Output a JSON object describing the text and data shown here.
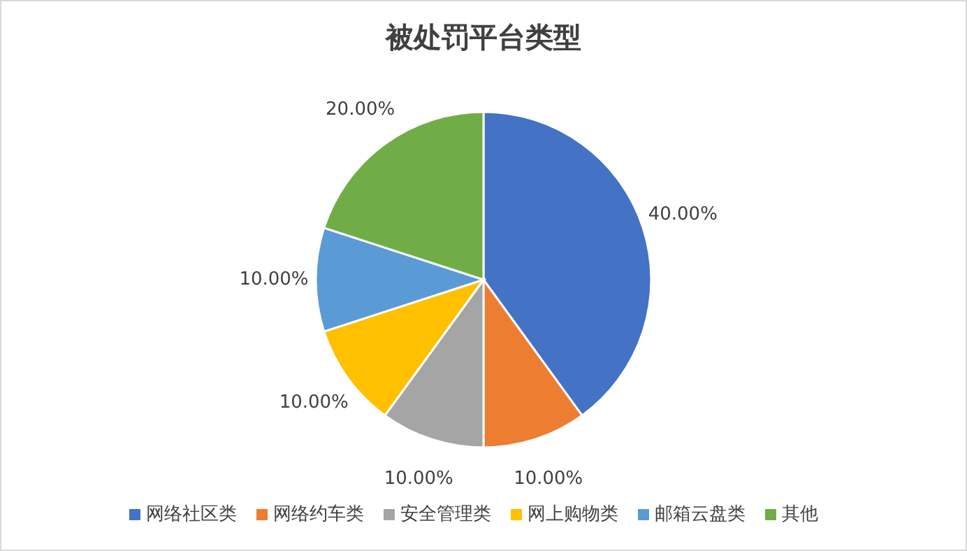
{
  "chart_data": {
    "type": "pie",
    "title": "被处罚平台类型",
    "categories": [
      "网络社区类",
      "网络约车类",
      "安全管理类",
      "网上购物类",
      "邮箱云盘类",
      "其他"
    ],
    "values": [
      40,
      10,
      10,
      10,
      10,
      20
    ],
    "value_labels": [
      "40.00%",
      "10.00%",
      "10.00%",
      "10.00%",
      "10.00%",
      "20.00%"
    ],
    "colors": [
      "#4472c4",
      "#ed7d31",
      "#a5a5a5",
      "#ffc000",
      "#5b9bd5",
      "#70ad47"
    ],
    "legend": "bottom"
  }
}
